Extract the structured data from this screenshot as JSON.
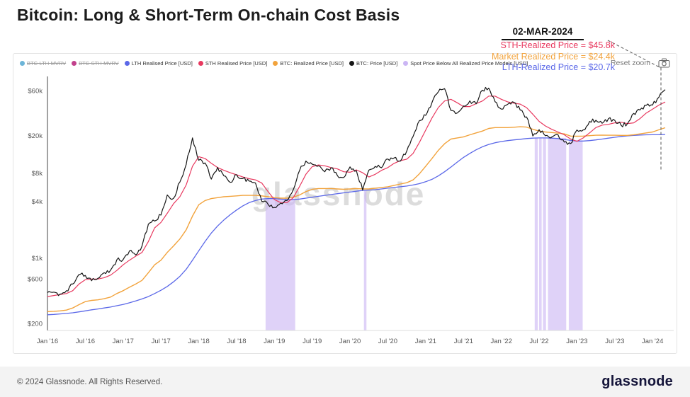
{
  "page": {
    "title": "Bitcoin: Long & Short-Term On-chain Cost Basis",
    "watermark": "glassnode",
    "footer_left": "© 2024 Glassnode. All Rights Reserved.",
    "footer_brand": "glassnode"
  },
  "toolbar": {
    "reset_zoom": "Reset zoom",
    "camera_icon": "camera"
  },
  "annotation": {
    "date": "02-MAR-2024",
    "lines": [
      {
        "text": "STH-Realized Price = $45.8k",
        "color": "#e8395f"
      },
      {
        "text": "Market Realized Price = $24.4k",
        "color": "#f2a33c"
      },
      {
        "text": "LTH-Realized Price = $20.7k",
        "color": "#5b68e8"
      }
    ]
  },
  "legend": [
    {
      "label": "BTC-LTH-MVRV",
      "color": "#6db5d8",
      "disabled": true
    },
    {
      "label": "BTC-STH-MVRV",
      "color": "#c2418c",
      "disabled": true
    },
    {
      "label": "LTH Realised Price [USD]",
      "color": "#5b68e8",
      "disabled": false
    },
    {
      "label": "STH Realised Price [USD]",
      "color": "#e8395f",
      "disabled": false
    },
    {
      "label": "BTC: Realized Price [USD]",
      "color": "#f2a33c",
      "disabled": false
    },
    {
      "label": "BTC: Price [USD]",
      "color": "#161616",
      "disabled": false
    },
    {
      "label": "Spot Price Below All Realized Price Models [USD]",
      "color": "#cbb6f4",
      "disabled": false
    }
  ],
  "chart_data": {
    "type": "line",
    "title": "Bitcoin: Long & Short-Term On-chain Cost Basis",
    "x_unit": "month",
    "x_start": "2016-01",
    "x_end": "2024-03",
    "x_ticks": [
      "Jan '16",
      "Jul '16",
      "Jan '17",
      "Jul '17",
      "Jan '18",
      "Jul '18",
      "Jan '19",
      "Jul '19",
      "Jan '20",
      "Jul '20",
      "Jan '21",
      "Jul '21",
      "Jan '22",
      "Jul '22",
      "Jan '23",
      "Jul '23",
      "Jan '24"
    ],
    "y_scale": "log",
    "ylim": [
      170,
      80000
    ],
    "grid": false,
    "legend_position": "top",
    "y_ticks": [
      {
        "label": "$60k",
        "value": 60000
      },
      {
        "label": "$20k",
        "value": 20000
      },
      {
        "label": "$8k",
        "value": 8000
      },
      {
        "label": "$4k",
        "value": 4000
      },
      {
        "label": "$1k",
        "value": 1000
      },
      {
        "label": "$600",
        "value": 600
      },
      {
        "label": "$200",
        "value": 200
      }
    ],
    "series": [
      {
        "name": "LTH Realised Price [USD]",
        "color": "#5b68e8",
        "width": 1.3,
        "is_model": true,
        "values": [
          250,
          252,
          255,
          258,
          262,
          268,
          275,
          282,
          288,
          295,
          302,
          312,
          322,
          335,
          350,
          368,
          390,
          420,
          455,
          500,
          560,
          640,
          760,
          950,
          1200,
          1500,
          1850,
          2200,
          2550,
          2900,
          3250,
          3600,
          3900,
          4100,
          4250,
          4300,
          4300,
          4250,
          4200,
          4200,
          4250,
          4350,
          4450,
          4550,
          4650,
          4750,
          4850,
          4950,
          5050,
          5150,
          5250,
          5300,
          5350,
          5450,
          5550,
          5650,
          5750,
          5850,
          6000,
          6200,
          6500,
          6900,
          7500,
          8300,
          9300,
          10500,
          11800,
          13000,
          14200,
          15300,
          16200,
          16900,
          17400,
          17800,
          18100,
          18400,
          18700,
          18900,
          19000,
          19000,
          18900,
          18700,
          18300,
          17900,
          17600,
          17600,
          17800,
          18100,
          18500,
          18900,
          19300,
          19700,
          20000,
          20200,
          20400,
          20500,
          20550,
          20600,
          20700
        ]
      },
      {
        "name": "BTC: Realized Price [USD]",
        "color": "#f2a33c",
        "width": 1.4,
        "is_model": true,
        "values": [
          270,
          272,
          275,
          280,
          295,
          320,
          345,
          355,
          360,
          370,
          385,
          420,
          450,
          490,
          530,
          580,
          700,
          850,
          950,
          1150,
          1350,
          1600,
          2000,
          2800,
          3700,
          4100,
          4300,
          4400,
          4500,
          4550,
          4600,
          4650,
          4650,
          4650,
          4600,
          4500,
          4400,
          4350,
          4350,
          4450,
          4700,
          5100,
          5400,
          5500,
          5500,
          5500,
          5450,
          5400,
          5450,
          5500,
          5450,
          5450,
          5550,
          5650,
          5750,
          5950,
          6150,
          6350,
          6800,
          7900,
          9500,
          11500,
          14000,
          16500,
          18500,
          19000,
          19500,
          20500,
          21500,
          22500,
          24000,
          24500,
          24500,
          24500,
          24700,
          25000,
          24800,
          23500,
          22500,
          22000,
          21700,
          21400,
          21000,
          19900,
          19800,
          19900,
          20100,
          20300,
          20350,
          20300,
          20300,
          20250,
          20250,
          20500,
          21000,
          21500,
          22000,
          23200,
          24400
        ]
      },
      {
        "name": "STH Realised Price [USD]",
        "color": "#e8395f",
        "width": 1.2,
        "is_model": true,
        "values": [
          390,
          400,
          410,
          420,
          450,
          530,
          590,
          600,
          600,
          620,
          660,
          740,
          850,
          950,
          1050,
          1150,
          1500,
          2100,
          2400,
          3000,
          3800,
          4500,
          6000,
          9500,
          12000,
          11500,
          10200,
          9200,
          8600,
          8100,
          7700,
          7300,
          7000,
          6800,
          6300,
          5100,
          4200,
          3900,
          3900,
          4400,
          5800,
          7800,
          9400,
          9800,
          9600,
          9200,
          8900,
          8300,
          8200,
          8700,
          8100,
          7300,
          7800,
          8600,
          9200,
          10200,
          10900,
          11300,
          13000,
          17000,
          23000,
          31000,
          40000,
          47000,
          49000,
          45000,
          41000,
          41000,
          44000,
          47000,
          53000,
          53000,
          49000,
          46000,
          44500,
          43500,
          40000,
          34000,
          28500,
          25500,
          23500,
          22000,
          20500,
          18500,
          17500,
          19000,
          21500,
          24500,
          26000,
          26500,
          27500,
          28000,
          27000,
          27500,
          30500,
          35000,
          38500,
          42500,
          45800
        ]
      },
      {
        "name": "BTC: Price [USD]",
        "color": "#161616",
        "width": 1.2,
        "noisy": true,
        "values": [
          430,
          435,
          415,
          450,
          530,
          670,
          655,
          575,
          610,
          700,
          745,
          960,
          965,
          1190,
          1080,
          1350,
          2300,
          2480,
          2875,
          4700,
          4340,
          6450,
          9900,
          19000,
          11000,
          10300,
          6930,
          9250,
          7500,
          6400,
          7730,
          7030,
          6600,
          6300,
          4020,
          3740,
          3460,
          3850,
          4100,
          5350,
          8560,
          10800,
          10000,
          9600,
          8300,
          9150,
          7550,
          7200,
          9350,
          8550,
          5300,
          8650,
          9450,
          9140,
          11350,
          11650,
          10780,
          13800,
          19700,
          29000,
          33100,
          45200,
          58800,
          63500,
          37300,
          35000,
          41600,
          47150,
          43800,
          61300,
          64400,
          46200,
          38500,
          43200,
          45500,
          37650,
          31800,
          19950,
          23300,
          20050,
          19400,
          20500,
          17150,
          16550,
          23100,
          23150,
          28450,
          29250,
          27200,
          30450,
          29250,
          25950,
          26950,
          34650,
          37700,
          42250,
          42550,
          51500,
          62000
        ]
      }
    ],
    "bands": {
      "name": "Spot Price Below All Realized Price Models [USD]",
      "color": "#cbb6f4",
      "ranges": [
        [
          34.6,
          39.3
        ],
        [
          50.2,
          50.6
        ],
        [
          77.3,
          77.8
        ],
        [
          78.0,
          78.4
        ],
        [
          78.6,
          79.1
        ],
        [
          79.4,
          82.3
        ],
        [
          82.7,
          84.9
        ]
      ]
    }
  }
}
